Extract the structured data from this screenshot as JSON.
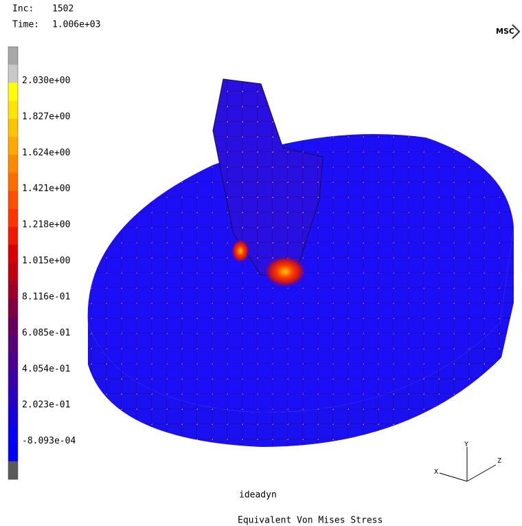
{
  "header": {
    "inc_label": "Inc:",
    "inc_value": "1502",
    "time_label": "Time:",
    "time_value": "1.006e+03",
    "logo": "MSC"
  },
  "legend": {
    "labels": [
      "2.030e+00",
      "1.827e+00",
      "1.624e+00",
      "1.421e+00",
      "1.218e+00",
      "1.015e+00",
      "8.116e-01",
      "6.085e-01",
      "4.054e-01",
      "2.023e-01",
      "-8.093e-04"
    ],
    "colors": [
      "#a8a8a8",
      "#c8c8c8",
      "#ffff00",
      "#ffe400",
      "#ffc400",
      "#ffa800",
      "#ff8a00",
      "#ff6c00",
      "#ff5000",
      "#ff3400",
      "#f01800",
      "#d80000",
      "#c00010",
      "#a00028",
      "#800040",
      "#68005c",
      "#580078",
      "#480090",
      "#3800a8",
      "#2800c4",
      "#1800dc",
      "#0800f4",
      "#0000ff",
      "#5a5a5a"
    ]
  },
  "axes": {
    "x": "X",
    "y": "Y",
    "z": "Z"
  },
  "footer": {
    "model": "ideadyn",
    "result": "Equivalent Von Mises Stress"
  }
}
